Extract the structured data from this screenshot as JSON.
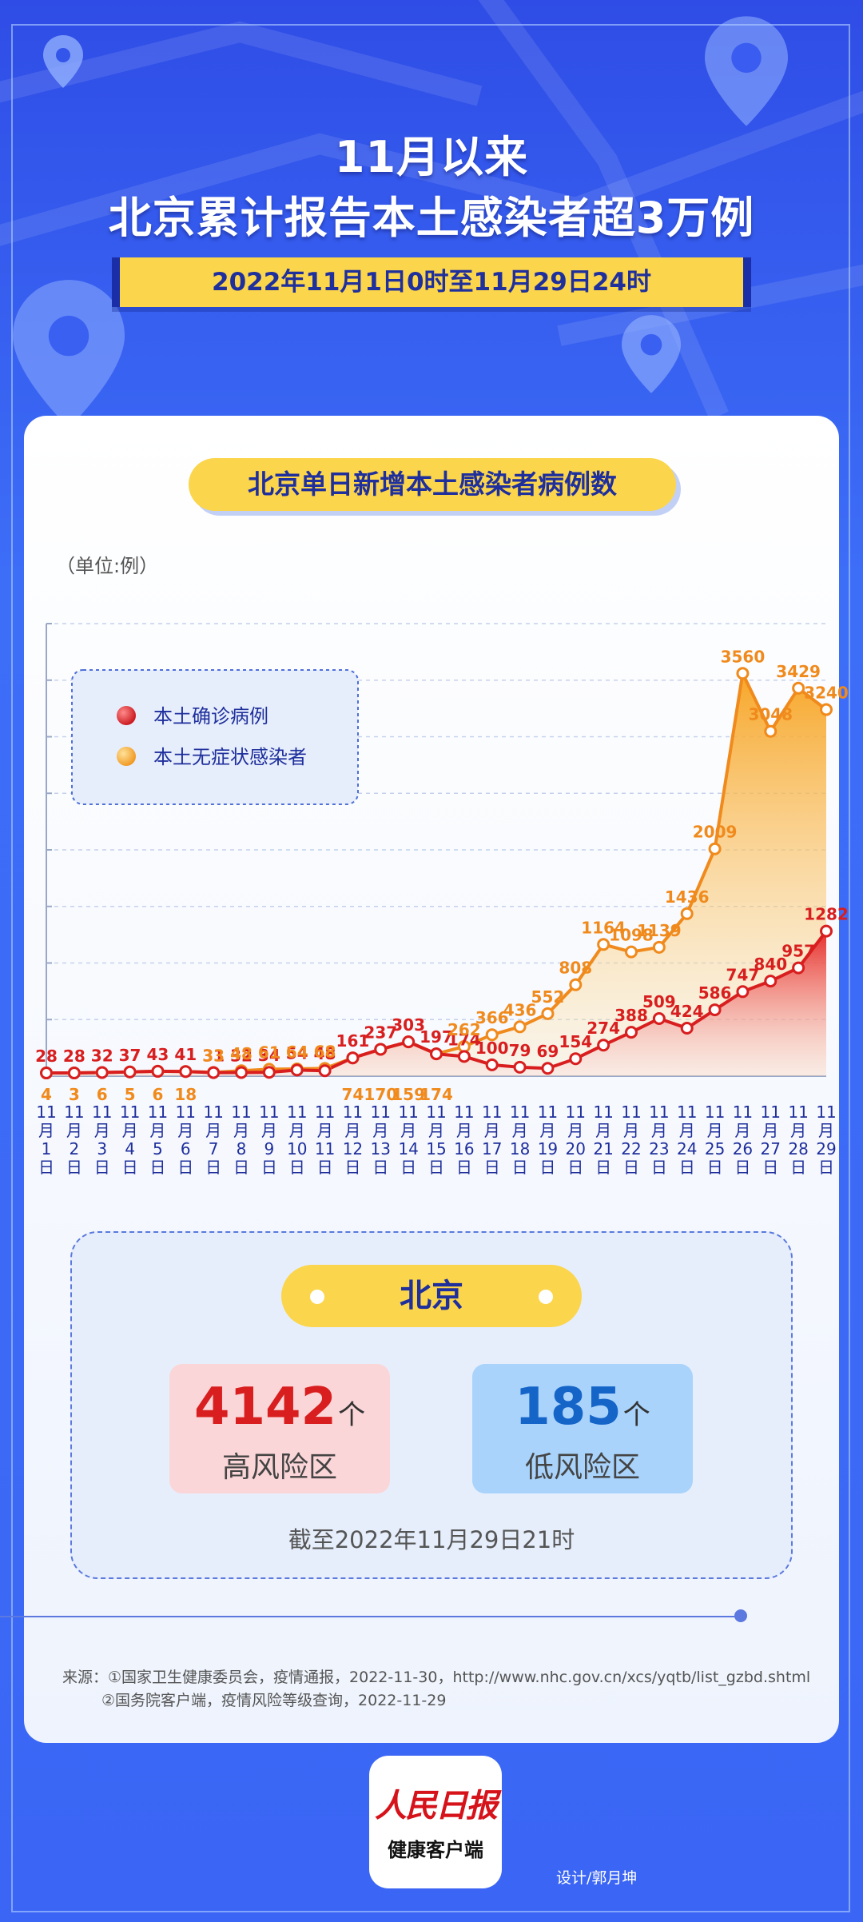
{
  "header": {
    "title_line1": "11月以来",
    "title_line2": "北京累计报告本土感染者超3万例",
    "date_range": "2022年11月1日0时至11月29日24时"
  },
  "chart_data": {
    "type": "area",
    "title": "北京单日新增本土感染者病例数",
    "unit_label": "（单位:例）",
    "categories": [
      "11月1日",
      "11月2日",
      "11月3日",
      "11月4日",
      "11月5日",
      "11月6日",
      "11月7日",
      "11月8日",
      "11月9日",
      "11月10日",
      "11月11日",
      "11月12日",
      "11月13日",
      "11月14日",
      "11月15日",
      "11月16日",
      "11月17日",
      "11月18日",
      "11月19日",
      "11月20日",
      "11月21日",
      "11月22日",
      "11月23日",
      "11月24日",
      "11月25日",
      "11月26日",
      "11月27日",
      "11月28日",
      "11月29日"
    ],
    "series": [
      {
        "name": "本土确诊病例",
        "color": "#d81e1e",
        "values": [
          28,
          28,
          32,
          37,
          43,
          41,
          31,
          32,
          34,
          54,
          48,
          161,
          237,
          303,
          197,
          174,
          100,
          79,
          69,
          154,
          274,
          388,
          509,
          424,
          586,
          747,
          840,
          957,
          1282
        ]
      },
      {
        "name": "本土无症状感染者",
        "color": "#f08a1c",
        "values": [
          4,
          3,
          6,
          5,
          6,
          18,
          33,
          48,
          61,
          64,
          68,
          74,
          170,
          159,
          174,
          262,
          366,
          436,
          552,
          808,
          1164,
          1098,
          1139,
          1436,
          2009,
          3560,
          3048,
          3429,
          3240
        ]
      }
    ],
    "ylim": [
      0,
      4000
    ],
    "grid": true,
    "legend_position": "top-left"
  },
  "beijing": {
    "label": "北京",
    "high_risk_count": "4142",
    "high_risk_unit": "个",
    "high_risk_label": "高风险区",
    "low_risk_count": "185",
    "low_risk_unit": "个",
    "low_risk_label": "低风险区",
    "as_of": "截至2022年11月29日21时"
  },
  "sources": {
    "line1": "来源：①国家卫生健康委员会，疫情通报，2022-11-30，http://www.nhc.gov.cn/xcs/yqtb/list_gzbd.shtml",
    "line2": "②国务院客户端，疫情风险等级查询，2022-11-29"
  },
  "footer": {
    "logo_main": "人民日报",
    "logo_sub": "健康客户端",
    "designer": "设计/郭月坤"
  }
}
